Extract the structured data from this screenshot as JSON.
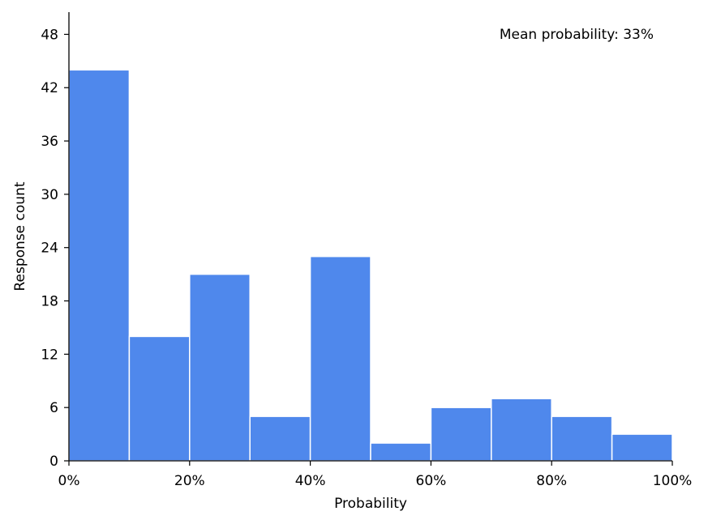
{
  "chart_data": {
    "type": "bar",
    "subtype": "histogram",
    "title": "",
    "xlabel": "Probability",
    "ylabel": "Response count",
    "annotation": "Mean probability: 33%",
    "bins": [
      {
        "start": 0,
        "end": 10,
        "count": 44
      },
      {
        "start": 10,
        "end": 20,
        "count": 14
      },
      {
        "start": 20,
        "end": 30,
        "count": 21
      },
      {
        "start": 30,
        "end": 40,
        "count": 5
      },
      {
        "start": 40,
        "end": 50,
        "count": 23
      },
      {
        "start": 50,
        "end": 60,
        "count": 2
      },
      {
        "start": 60,
        "end": 70,
        "count": 6
      },
      {
        "start": 70,
        "end": 80,
        "count": 7
      },
      {
        "start": 80,
        "end": 90,
        "count": 5
      },
      {
        "start": 90,
        "end": 100,
        "count": 3
      }
    ],
    "xlim": [
      0,
      100
    ],
    "ylim": [
      0,
      50.5
    ],
    "x_ticks": [
      {
        "value": 0,
        "label": "0%"
      },
      {
        "value": 20,
        "label": "20%"
      },
      {
        "value": 40,
        "label": "40%"
      },
      {
        "value": 60,
        "label": "60%"
      },
      {
        "value": 80,
        "label": "80%"
      },
      {
        "value": 100,
        "label": "100%"
      }
    ],
    "y_ticks": [
      {
        "value": 0,
        "label": "0"
      },
      {
        "value": 6,
        "label": "6"
      },
      {
        "value": 12,
        "label": "12"
      },
      {
        "value": 18,
        "label": "18"
      },
      {
        "value": 24,
        "label": "24"
      },
      {
        "value": 30,
        "label": "30"
      },
      {
        "value": 36,
        "label": "36"
      },
      {
        "value": 42,
        "label": "42"
      },
      {
        "value": 48,
        "label": "48"
      }
    ],
    "bar_color": "#4f88ec",
    "bar_edge_color": "#ffffff",
    "grid": false,
    "legend": "none"
  }
}
